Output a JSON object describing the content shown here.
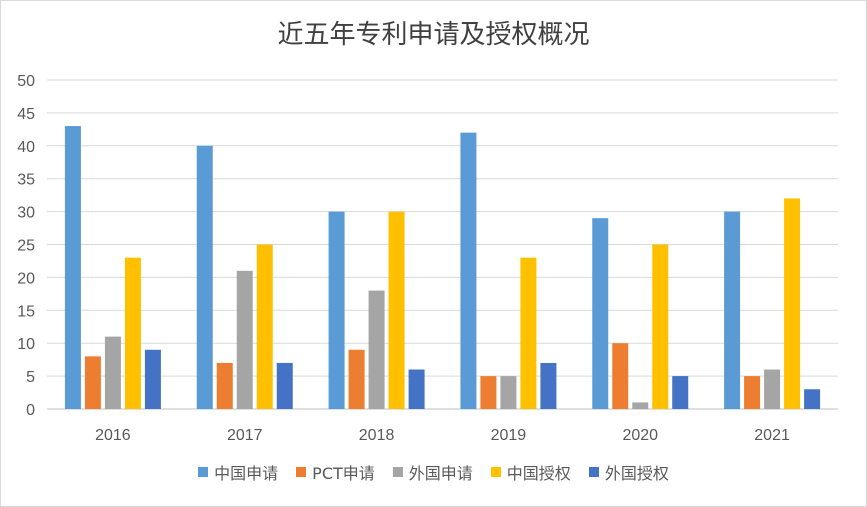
{
  "chart_data": {
    "type": "bar",
    "title": "近五年专利申请及授权概况",
    "categories": [
      "2016",
      "2017",
      "2018",
      "2019",
      "2020",
      "2021"
    ],
    "ylim": [
      0,
      50
    ],
    "yticks": [
      0,
      5,
      10,
      15,
      20,
      25,
      30,
      35,
      40,
      45,
      50
    ],
    "grid": true,
    "legend_position": "bottom",
    "series": [
      {
        "name": "中国申请",
        "color": "#5B9BD5",
        "values": [
          43,
          40,
          30,
          42,
          29,
          30
        ]
      },
      {
        "name": "PCT申请",
        "color": "#ED7D31",
        "values": [
          8,
          7,
          9,
          5,
          10,
          5
        ]
      },
      {
        "name": "外国申请",
        "color": "#A5A5A5",
        "values": [
          11,
          21,
          18,
          5,
          1,
          6
        ]
      },
      {
        "name": "中国授权",
        "color": "#FFC000",
        "values": [
          23,
          25,
          30,
          23,
          25,
          32
        ]
      },
      {
        "name": "外国授权",
        "color": "#4472C4",
        "values": [
          9,
          7,
          6,
          7,
          5,
          3
        ]
      }
    ]
  }
}
